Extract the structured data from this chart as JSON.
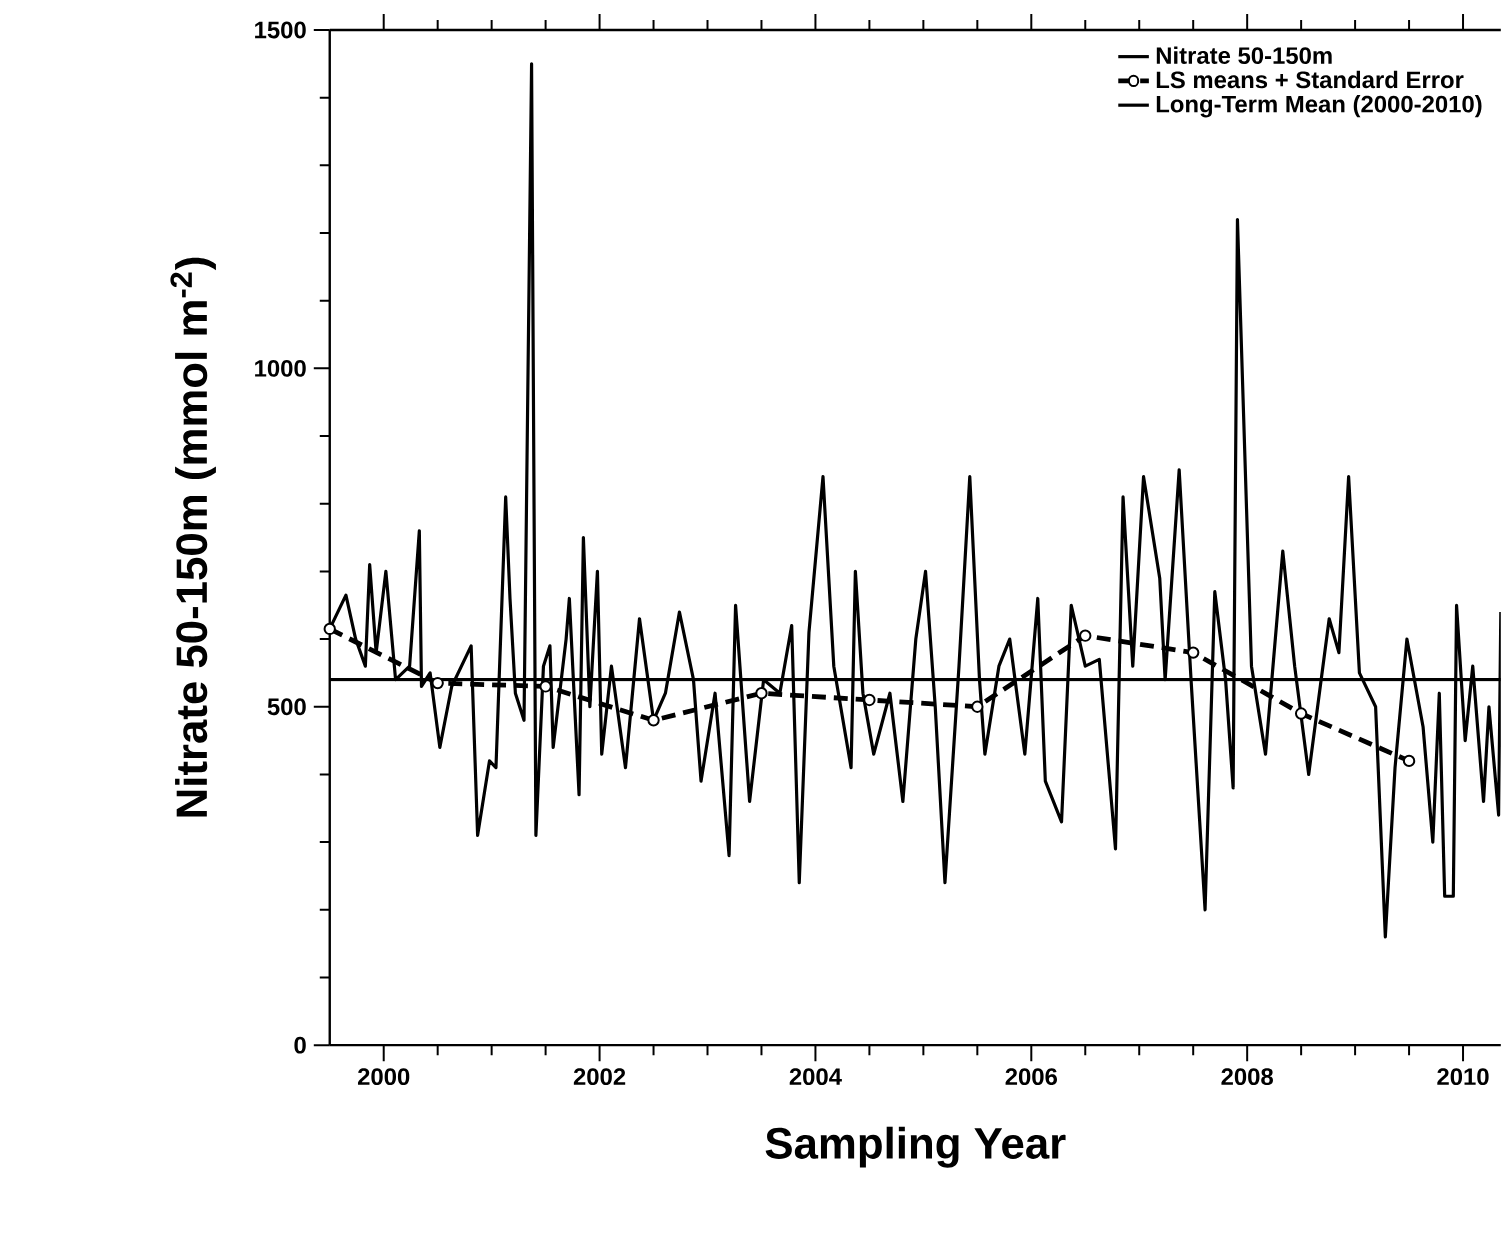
{
  "chart_data": {
    "type": "line",
    "xlabel": "Sampling Year",
    "ylabel": "Nitrate 50-150m (mmol m$^{-2}$)",
    "xlim": [
      1999.5,
      2010.35
    ],
    "ylim": [
      0,
      1500
    ],
    "xticks": [
      2000,
      2002,
      2004,
      2006,
      2008,
      2010
    ],
    "yticks": [
      0,
      500,
      1000,
      1500
    ],
    "grid": false,
    "legend": "top right",
    "series": [
      {
        "name": "Nitrate 50-150m",
        "color": "#000000",
        "marker": "none",
        "line_style": "solid",
        "x": [
          1999.5,
          1999.65,
          1999.74,
          1999.83,
          1999.87,
          1999.93,
          2000.02,
          2000.11,
          2000.24,
          2000.33,
          2000.35,
          2000.43,
          2000.52,
          2000.63,
          2000.81,
          2000.87,
          2000.98,
          2001.04,
          2001.13,
          2001.17,
          2001.22,
          2001.3,
          2001.37,
          2001.41,
          2001.48,
          2001.54,
          2001.57,
          2001.69,
          2001.72,
          2001.81,
          2001.85,
          2001.91,
          2001.98,
          2002.02,
          2002.11,
          2002.24,
          2002.37,
          2002.5,
          2002.61,
          2002.74,
          2002.87,
          2002.94,
          2003.07,
          2003.2,
          2003.26,
          2003.39,
          2003.52,
          2003.67,
          2003.78,
          2003.85,
          2003.94,
          2004.07,
          2004.17,
          2004.33,
          2004.37,
          2004.44,
          2004.54,
          2004.69,
          2004.81,
          2004.93,
          2005.02,
          2005.11,
          2005.2,
          2005.33,
          2005.43,
          2005.52,
          2005.57,
          2005.7,
          2005.8,
          2005.94,
          2006.06,
          2006.13,
          2006.28,
          2006.37,
          2006.5,
          2006.63,
          2006.78,
          2006.85,
          2006.94,
          2007.04,
          2007.19,
          2007.24,
          2007.37,
          2007.48,
          2007.61,
          2007.7,
          2007.8,
          2007.87,
          2007.91,
          2008.04,
          2008.17,
          2008.33,
          2008.44,
          2008.57,
          2008.76,
          2008.85,
          2008.94,
          2009.04,
          2009.19,
          2009.28,
          2009.37,
          2009.48,
          2009.63,
          2009.72,
          2009.78,
          2009.83,
          2009.91,
          2009.94,
          2010.02,
          2010.09,
          2010.19,
          2010.24,
          2010.33,
          2010.35
        ],
        "values": [
          615,
          665,
          600,
          560,
          710,
          580,
          700,
          540,
          560,
          760,
          530,
          550,
          440,
          530,
          590,
          310,
          420,
          410,
          810,
          660,
          520,
          480,
          1450,
          310,
          560,
          590,
          440,
          600,
          660,
          370,
          750,
          500,
          700,
          430,
          560,
          410,
          630,
          480,
          520,
          640,
          540,
          390,
          520,
          280,
          650,
          360,
          540,
          520,
          620,
          240,
          610,
          840,
          560,
          410,
          700,
          520,
          430,
          520,
          360,
          600,
          700,
          500,
          240,
          560,
          840,
          540,
          430,
          560,
          600,
          430,
          660,
          390,
          330,
          650,
          560,
          570,
          290,
          810,
          560,
          840,
          690,
          540,
          850,
          540,
          200,
          670,
          540,
          380,
          1220,
          560,
          430,
          730,
          560,
          400,
          630,
          580,
          840,
          550,
          500,
          160,
          410,
          600,
          470,
          300,
          520,
          220,
          220,
          650,
          450,
          560,
          360,
          500,
          340,
          640
        ]
      },
      {
        "name": "LS means + Standard Error",
        "color": "#000000",
        "marker": "circle",
        "line_style": "dashed",
        "x": [
          1999.5,
          2000.5,
          2001.5,
          2002.5,
          2003.5,
          2004.5,
          2005.5,
          2006.5,
          2007.5,
          2008.5,
          2009.5
        ],
        "values": [
          615,
          535,
          530,
          480,
          520,
          510,
          500,
          605,
          580,
          490,
          420
        ]
      },
      {
        "name": "Long-Term Mean (2000-2010)",
        "color": "#000000",
        "marker": "none",
        "line_style": "solid",
        "x": [
          1999.5,
          2010.35
        ],
        "values": [
          540,
          540
        ]
      }
    ]
  }
}
